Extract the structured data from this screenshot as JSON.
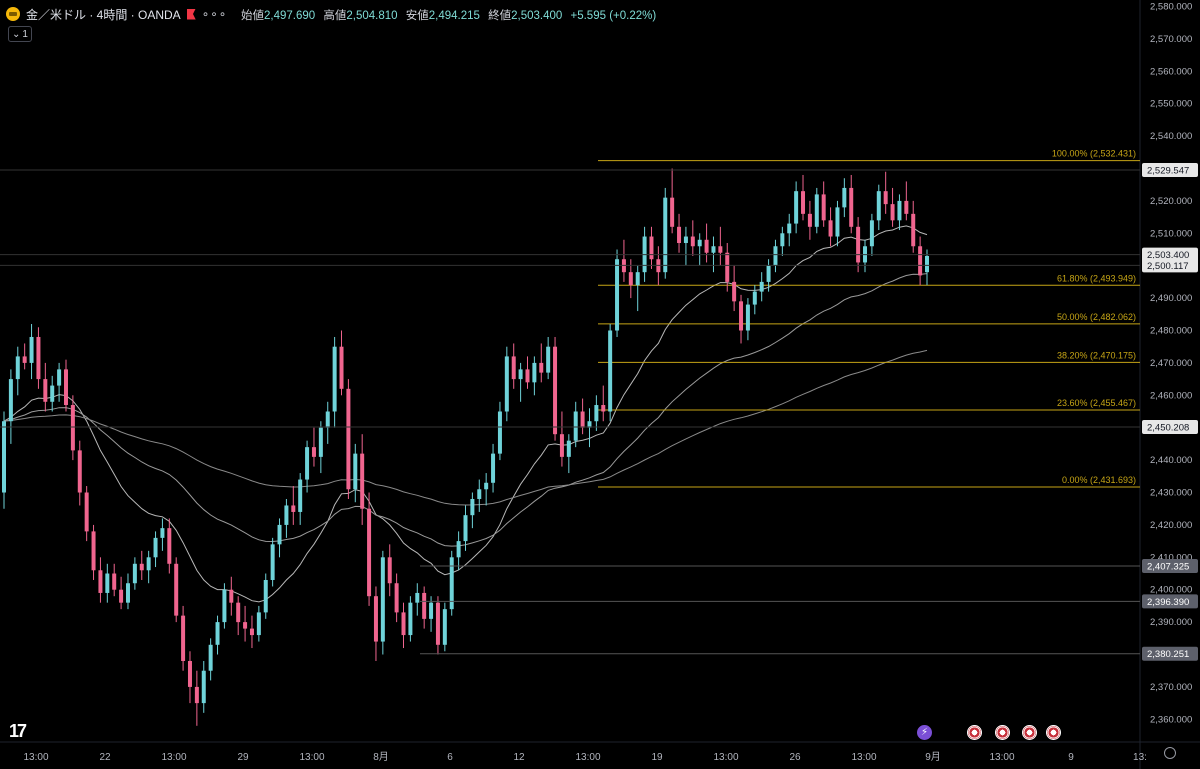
{
  "header": {
    "symbol": "金／米ドル · 4時間 · OANDA",
    "open_label": "始値",
    "open": "2,497.690",
    "high_label": "高値",
    "high": "2,504.810",
    "low_label": "安値",
    "low": "2,494.215",
    "close_label": "終値",
    "close": "2,503.400",
    "change": "+5.595 (+0.22%)",
    "collapse_count": "1"
  },
  "colors": {
    "up": "#6fd3d9",
    "down": "#f0658f",
    "fib": "#c6a516",
    "zone": "#8b7a10",
    "axis_text": "#b2b5be"
  },
  "chart_data": {
    "type": "candlestick",
    "y_axis": {
      "ylim": [
        2353,
        2582
      ],
      "ticks": [
        2360,
        2370,
        2380,
        2390,
        2400,
        2410,
        2420,
        2430,
        2440,
        2450,
        2460,
        2470,
        2480,
        2490,
        2500,
        2510,
        2520,
        2530,
        2540,
        2550,
        2560,
        2570,
        2580
      ],
      "tick_labels": [
        "2,360.000",
        "2,370.000",
        "2,380.000",
        "2,390.000",
        "2,400.000",
        "2,410.000",
        "2,420.000",
        "2,430.000",
        "2,440.000",
        "2,450.000",
        "2,460.000",
        "2,470.000",
        "2,480.000",
        "2,490.000",
        "2,500.000",
        "2,510.000",
        "2,520.000",
        "2,530.000",
        "2,540.000",
        "2,550.000",
        "2,560.000",
        "2,570.000",
        "2,580.000"
      ]
    },
    "x_axis": {
      "labels": [
        "13:00",
        "22",
        "13:00",
        "29",
        "13:00",
        "8月",
        "6",
        "12",
        "13:00",
        "19",
        "13:00",
        "26",
        "13:00",
        "9月",
        "13:00",
        "9",
        "13:"
      ]
    },
    "price_labels": [
      {
        "label": "2,529.547",
        "value": 2529.547,
        "style": "light"
      },
      {
        "label": "2,503.400",
        "value": 2503.4,
        "style": "light"
      },
      {
        "label": "2,500.117",
        "value": 2500.117,
        "style": "light"
      },
      {
        "label": "2,450.208",
        "value": 2450.208,
        "style": "light"
      },
      {
        "label": "2,407.325",
        "value": 2407.325,
        "style": "grey"
      },
      {
        "label": "2,396.390",
        "value": 2396.39,
        "style": "grey"
      },
      {
        "label": "2,380.251",
        "value": 2380.251,
        "style": "grey"
      }
    ],
    "fib_levels": [
      {
        "label": "100.00% (2,532.431)",
        "value": 2532.431
      },
      {
        "label": "61.80% (2,493.949)",
        "value": 2493.949
      },
      {
        "label": "50.00% (2,482.062)",
        "value": 2482.062
      },
      {
        "label": "38.20% (2,470.175)",
        "value": 2470.175
      },
      {
        "label": "23.60% (2,455.467)",
        "value": 2455.467
      },
      {
        "label": "0.00% (2,431.693)",
        "value": 2431.693
      }
    ],
    "candles": [
      [
        2430,
        2455,
        2425,
        2452
      ],
      [
        2452,
        2468,
        2445,
        2465
      ],
      [
        2465,
        2475,
        2460,
        2472
      ],
      [
        2472,
        2476,
        2468,
        2470
      ],
      [
        2470,
        2482,
        2465,
        2478
      ],
      [
        2478,
        2481,
        2462,
        2465
      ],
      [
        2465,
        2470,
        2455,
        2458
      ],
      [
        2458,
        2466,
        2455,
        2463
      ],
      [
        2463,
        2470,
        2458,
        2468
      ],
      [
        2468,
        2471,
        2455,
        2457
      ],
      [
        2457,
        2460,
        2440,
        2443
      ],
      [
        2443,
        2446,
        2426,
        2430
      ],
      [
        2430,
        2432,
        2415,
        2418
      ],
      [
        2418,
        2420,
        2403,
        2406
      ],
      [
        2406,
        2410,
        2396,
        2399
      ],
      [
        2399,
        2408,
        2396,
        2405
      ],
      [
        2405,
        2408,
        2398,
        2400
      ],
      [
        2400,
        2404,
        2394,
        2396
      ],
      [
        2396,
        2405,
        2394,
        2402
      ],
      [
        2402,
        2410,
        2400,
        2408
      ],
      [
        2408,
        2412,
        2403,
        2406
      ],
      [
        2406,
        2412,
        2402,
        2410
      ],
      [
        2410,
        2418,
        2407,
        2416
      ],
      [
        2416,
        2422,
        2412,
        2419
      ],
      [
        2419,
        2422,
        2405,
        2408
      ],
      [
        2408,
        2410,
        2390,
        2392
      ],
      [
        2392,
        2395,
        2375,
        2378
      ],
      [
        2378,
        2381,
        2365,
        2370
      ],
      [
        2370,
        2375,
        2358,
        2365
      ],
      [
        2365,
        2378,
        2362,
        2375
      ],
      [
        2375,
        2385,
        2372,
        2383
      ],
      [
        2383,
        2392,
        2380,
        2390
      ],
      [
        2390,
        2402,
        2388,
        2400
      ],
      [
        2400,
        2404,
        2392,
        2396
      ],
      [
        2396,
        2398,
        2386,
        2390
      ],
      [
        2390,
        2395,
        2384,
        2388
      ],
      [
        2388,
        2392,
        2382,
        2386
      ],
      [
        2386,
        2395,
        2384,
        2393
      ],
      [
        2393,
        2405,
        2391,
        2403
      ],
      [
        2403,
        2416,
        2401,
        2414
      ],
      [
        2414,
        2422,
        2410,
        2420
      ],
      [
        2420,
        2428,
        2416,
        2426
      ],
      [
        2426,
        2432,
        2420,
        2424
      ],
      [
        2424,
        2436,
        2420,
        2434
      ],
      [
        2434,
        2446,
        2430,
        2444
      ],
      [
        2444,
        2450,
        2438,
        2441
      ],
      [
        2441,
        2452,
        2436,
        2450
      ],
      [
        2450,
        2458,
        2445,
        2455
      ],
      [
        2455,
        2478,
        2450,
        2475
      ],
      [
        2475,
        2480,
        2460,
        2462
      ],
      [
        2462,
        2465,
        2428,
        2431
      ],
      [
        2431,
        2445,
        2427,
        2442
      ],
      [
        2442,
        2448,
        2420,
        2425
      ],
      [
        2425,
        2430,
        2395,
        2398
      ],
      [
        2398,
        2401,
        2378,
        2384
      ],
      [
        2384,
        2412,
        2380,
        2410
      ],
      [
        2410,
        2414,
        2398,
        2402
      ],
      [
        2402,
        2405,
        2390,
        2393
      ],
      [
        2393,
        2396,
        2382,
        2386
      ],
      [
        2386,
        2398,
        2384,
        2396
      ],
      [
        2396,
        2402,
        2392,
        2399
      ],
      [
        2399,
        2401,
        2388,
        2391
      ],
      [
        2391,
        2398,
        2387,
        2396
      ],
      [
        2396,
        2398,
        2380,
        2383
      ],
      [
        2383,
        2396,
        2381,
        2394
      ],
      [
        2394,
        2412,
        2392,
        2410
      ],
      [
        2410,
        2418,
        2406,
        2415
      ],
      [
        2415,
        2426,
        2412,
        2423
      ],
      [
        2423,
        2430,
        2419,
        2428
      ],
      [
        2428,
        2434,
        2424,
        2431
      ],
      [
        2431,
        2436,
        2426,
        2433
      ],
      [
        2433,
        2445,
        2430,
        2442
      ],
      [
        2442,
        2458,
        2440,
        2455
      ],
      [
        2455,
        2475,
        2452,
        2472
      ],
      [
        2472,
        2476,
        2462,
        2465
      ],
      [
        2465,
        2470,
        2458,
        2468
      ],
      [
        2468,
        2472,
        2462,
        2464
      ],
      [
        2464,
        2472,
        2460,
        2470
      ],
      [
        2470,
        2476,
        2464,
        2467
      ],
      [
        2467,
        2478,
        2465,
        2475
      ],
      [
        2475,
        2478,
        2446,
        2448
      ],
      [
        2448,
        2455,
        2438,
        2441
      ],
      [
        2441,
        2448,
        2436,
        2446
      ],
      [
        2446,
        2458,
        2444,
        2455
      ],
      [
        2455,
        2459,
        2448,
        2450
      ],
      [
        2450,
        2456,
        2444,
        2452
      ],
      [
        2452,
        2460,
        2449,
        2457
      ],
      [
        2457,
        2463,
        2452,
        2455
      ],
      [
        2455,
        2482,
        2452,
        2480
      ],
      [
        2480,
        2505,
        2478,
        2502
      ],
      [
        2502,
        2508,
        2495,
        2498
      ],
      [
        2498,
        2502,
        2490,
        2494
      ],
      [
        2494,
        2500,
        2486,
        2498
      ],
      [
        2498,
        2512,
        2495,
        2509
      ],
      [
        2509,
        2512,
        2499,
        2502
      ],
      [
        2502,
        2506,
        2494,
        2498
      ],
      [
        2498,
        2524,
        2496,
        2521
      ],
      [
        2521,
        2530,
        2510,
        2512
      ],
      [
        2512,
        2516,
        2504,
        2507
      ],
      [
        2507,
        2512,
        2500,
        2509
      ],
      [
        2509,
        2514,
        2503,
        2506
      ],
      [
        2506,
        2510,
        2500,
        2508
      ],
      [
        2508,
        2513,
        2501,
        2504
      ],
      [
        2504,
        2509,
        2498,
        2506
      ],
      [
        2506,
        2512,
        2500,
        2504
      ],
      [
        2504,
        2507,
        2492,
        2495
      ],
      [
        2495,
        2500,
        2486,
        2489
      ],
      [
        2489,
        2491,
        2476,
        2480
      ],
      [
        2480,
        2490,
        2477,
        2488
      ],
      [
        2488,
        2494,
        2485,
        2492
      ],
      [
        2492,
        2498,
        2489,
        2495
      ],
      [
        2495,
        2502,
        2492,
        2500
      ],
      [
        2500,
        2508,
        2498,
        2506
      ],
      [
        2506,
        2512,
        2503,
        2510
      ],
      [
        2510,
        2516,
        2506,
        2513
      ],
      [
        2513,
        2526,
        2510,
        2523
      ],
      [
        2523,
        2528,
        2514,
        2516
      ],
      [
        2516,
        2520,
        2508,
        2512
      ],
      [
        2512,
        2524,
        2510,
        2522
      ],
      [
        2522,
        2526,
        2512,
        2514
      ],
      [
        2514,
        2518,
        2506,
        2509
      ],
      [
        2509,
        2520,
        2506,
        2518
      ],
      [
        2518,
        2527,
        2515,
        2524
      ],
      [
        2524,
        2528,
        2510,
        2512
      ],
      [
        2512,
        2515,
        2498,
        2501
      ],
      [
        2501,
        2508,
        2498,
        2506
      ],
      [
        2506,
        2516,
        2503,
        2514
      ],
      [
        2514,
        2525,
        2511,
        2523
      ],
      [
        2523,
        2529,
        2516,
        2519
      ],
      [
        2519,
        2524,
        2512,
        2514
      ],
      [
        2514,
        2522,
        2511,
        2520
      ],
      [
        2520,
        2526,
        2514,
        2516
      ],
      [
        2516,
        2520,
        2504,
        2506
      ],
      [
        2506,
        2509,
        2494,
        2497
      ],
      [
        2498,
        2505,
        2494,
        2503
      ]
    ],
    "legend": []
  }
}
